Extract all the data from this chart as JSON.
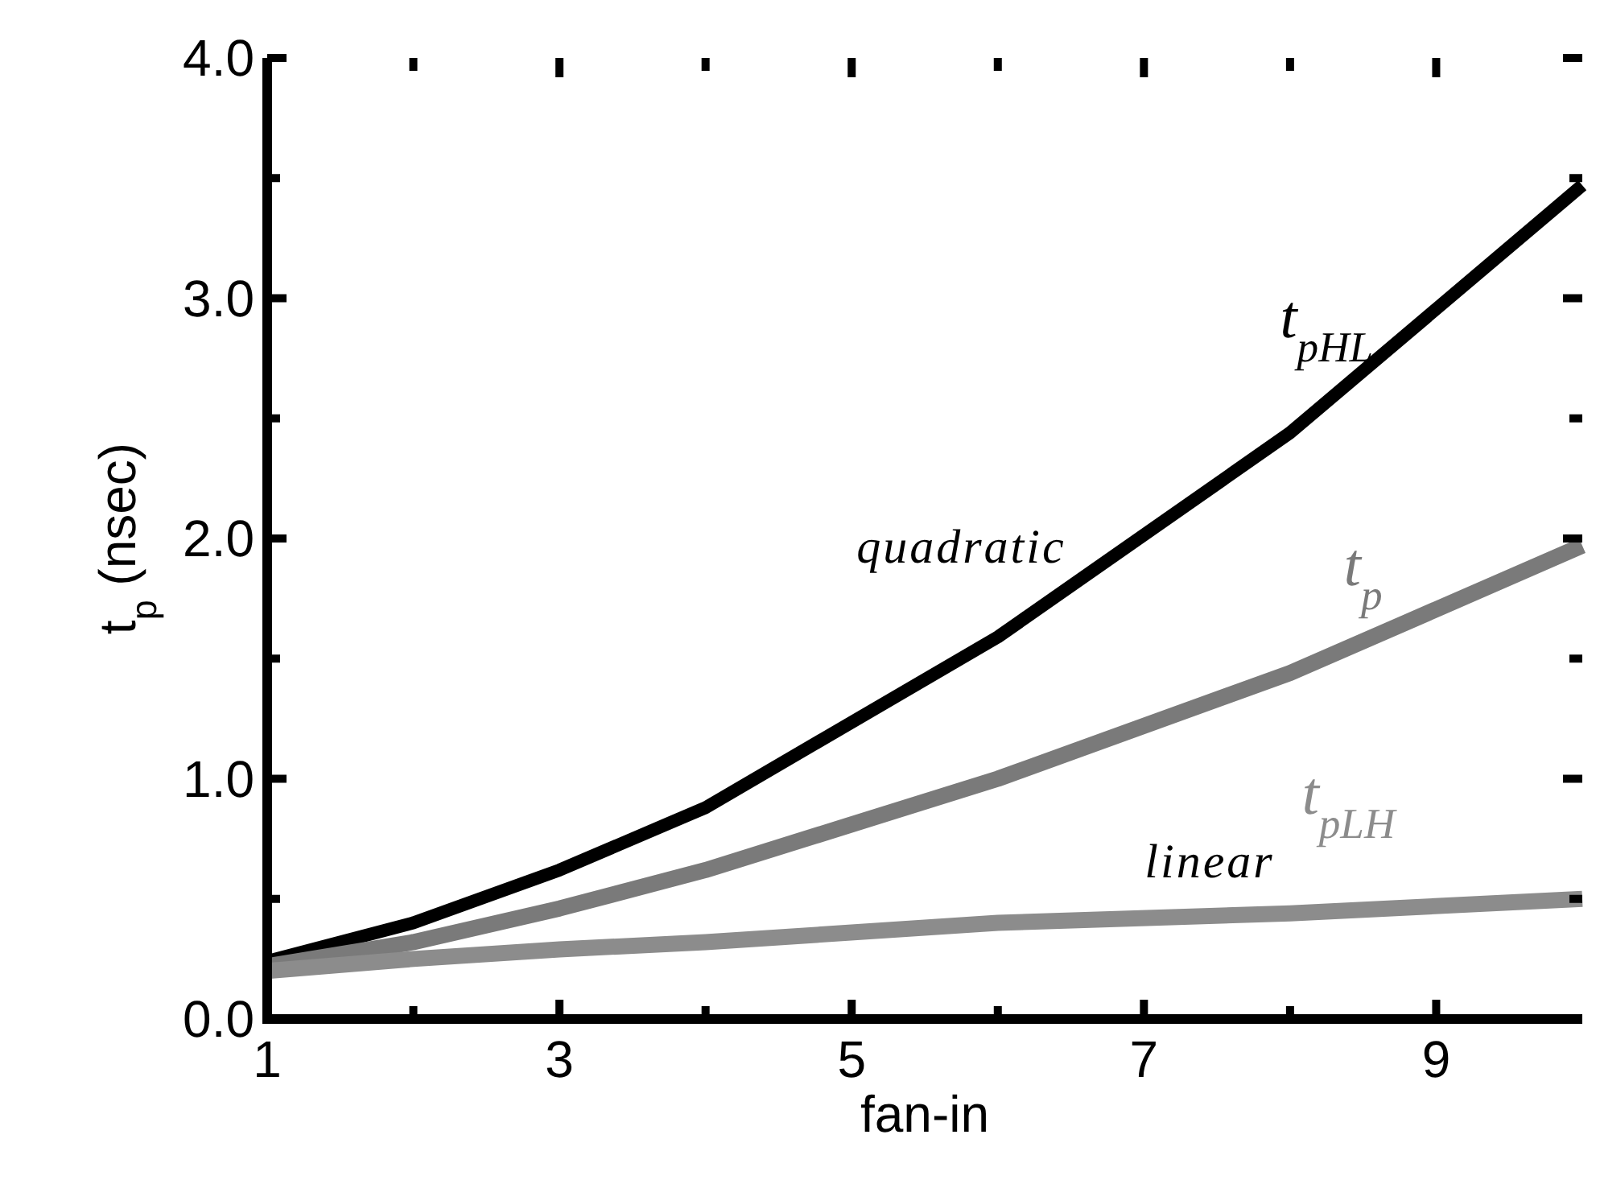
{
  "chart_data": {
    "type": "line",
    "xlabel": "fan-in",
    "ylabel": "t$_{p}$ (nsec)",
    "xlim": [
      1,
      10
    ],
    "ylim": [
      0,
      4
    ],
    "xticks": [
      1,
      {
        "value": 2,
        "label": null
      },
      3,
      {
        "value": 4,
        "label": null
      },
      5,
      {
        "value": 6,
        "label": null
      },
      7,
      {
        "value": 8,
        "label": null
      },
      9
    ],
    "yticks": [
      {
        "value": 0,
        "label": "0.0"
      },
      {
        "value": 0.5,
        "label": null
      },
      {
        "value": 1,
        "label": "1.0"
      },
      {
        "value": 1.5,
        "label": null
      },
      {
        "value": 2,
        "label": "2.0"
      },
      {
        "value": 2.5,
        "label": null
      },
      {
        "value": 3,
        "label": "3.0"
      },
      {
        "value": 3.5,
        "label": null
      },
      {
        "value": 4,
        "label": "4.0"
      }
    ],
    "grid": false,
    "legend": "right",
    "marker": "none",
    "series": [
      {
        "name": "t$_{pHL}$",
        "color": "#000000",
        "x": [
          1,
          2,
          3,
          4,
          6,
          8,
          10
        ],
        "values": [
          0.24,
          0.4,
          0.62,
          0.88,
          1.59,
          2.44,
          3.47
        ]
      },
      {
        "name": "t$_{p}$",
        "color": "#7a7a7a",
        "x": [
          1,
          2,
          3,
          4,
          6,
          8,
          10
        ],
        "values": [
          0.22,
          0.32,
          0.46,
          0.62,
          1.0,
          1.44,
          1.97
        ]
      },
      {
        "name": "t$_{pLH}$",
        "color": "#8c8c8c",
        "x": [
          1,
          2,
          3,
          4,
          6,
          8,
          10
        ],
        "values": [
          0.2,
          0.25,
          0.29,
          0.32,
          0.4,
          0.44,
          0.5
        ]
      }
    ],
    "annotations": [
      "quadratic",
      "linear"
    ]
  }
}
